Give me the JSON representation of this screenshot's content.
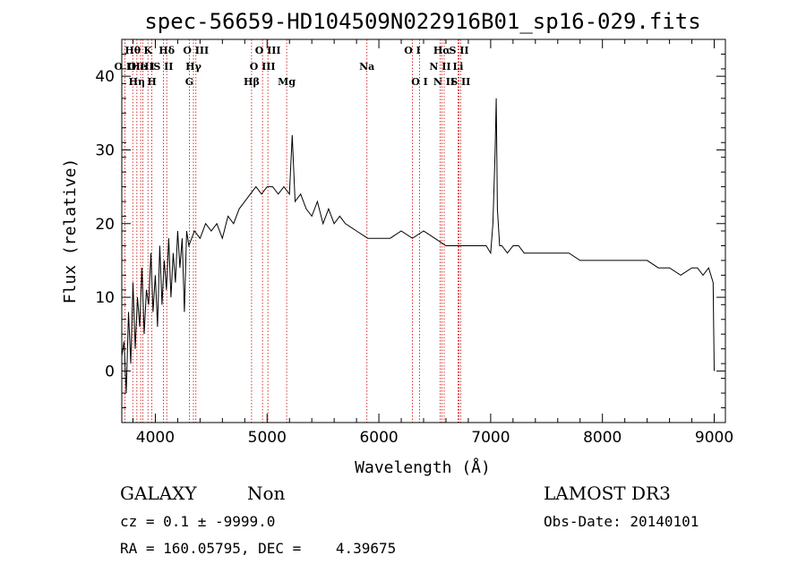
{
  "chart_data": {
    "type": "line",
    "title": "spec-56659-HD104509N022916B01_sp16-029.fits",
    "xlabel": "Wavelength (Å)",
    "ylabel": "Flux (relative)",
    "xlim": [
      3700,
      9100
    ],
    "ylim": [
      -7,
      45
    ],
    "x_ticks": [
      4000,
      5000,
      6000,
      7000,
      8000,
      9000
    ],
    "y_ticks": [
      0,
      10,
      20,
      30,
      40
    ],
    "x_tick_labels": [
      "4000",
      "5000",
      "6000",
      "7000",
      "8000",
      "9000"
    ],
    "y_tick_labels": [
      "0",
      "10",
      "20",
      "30",
      "40"
    ],
    "series": [
      {
        "name": "spectrum",
        "color": "#000000",
        "x": [
          3700,
          3720,
          3740,
          3760,
          3780,
          3800,
          3820,
          3840,
          3860,
          3880,
          3900,
          3920,
          3940,
          3960,
          3980,
          4000,
          4020,
          4040,
          4060,
          4080,
          4100,
          4120,
          4140,
          4160,
          4180,
          4200,
          4220,
          4240,
          4260,
          4280,
          4300,
          4350,
          4400,
          4450,
          4500,
          4550,
          4600,
          4650,
          4700,
          4750,
          4800,
          4850,
          4900,
          4950,
          5000,
          5050,
          5100,
          5150,
          5200,
          5225,
          5250,
          5300,
          5350,
          5400,
          5450,
          5500,
          5550,
          5600,
          5650,
          5700,
          5800,
          5900,
          6000,
          6100,
          6200,
          6300,
          6400,
          6500,
          6600,
          6700,
          6800,
          6900,
          6960,
          7000,
          7020,
          7040,
          7050,
          7060,
          7080,
          7100,
          7150,
          7200,
          7250,
          7300,
          7400,
          7500,
          7600,
          7700,
          7800,
          7900,
          8000,
          8100,
          8200,
          8300,
          8400,
          8500,
          8600,
          8700,
          8800,
          8850,
          8900,
          8950,
          8990,
          9000
        ],
        "y": [
          2,
          4,
          -3,
          8,
          1,
          12,
          3,
          10,
          6,
          14,
          5,
          11,
          9,
          16,
          8,
          13,
          6,
          17,
          9,
          15,
          11,
          18,
          10,
          16,
          12,
          19,
          14,
          18,
          8,
          19,
          17,
          19,
          18,
          20,
          19,
          20,
          18,
          21,
          20,
          22,
          23,
          24,
          25,
          24,
          25,
          25,
          24,
          25,
          24,
          32,
          23,
          24,
          22,
          21,
          23,
          20,
          22,
          20,
          21,
          20,
          19,
          18,
          18,
          18,
          19,
          18,
          19,
          18,
          17,
          17,
          17,
          17,
          17,
          16,
          20,
          30,
          37,
          22,
          17,
          17,
          16,
          17,
          17,
          16,
          16,
          16,
          16,
          16,
          15,
          15,
          15,
          15,
          15,
          15,
          15,
          14,
          14,
          13,
          14,
          14,
          13,
          14,
          12,
          0
        ]
      }
    ],
    "spectral_lines": [
      {
        "label": "O II",
        "x": 3727,
        "row": 2
      },
      {
        "label": "Hθ",
        "x": 3798,
        "row": 1
      },
      {
        "label": "O III",
        "x": 3869,
        "row": 2
      },
      {
        "label": "Hη",
        "x": 3835,
        "row": 3
      },
      {
        "label": "He I",
        "x": 3889,
        "row": 2
      },
      {
        "label": "K",
        "x": 3934,
        "row": 1
      },
      {
        "label": "H",
        "x": 3969,
        "row": 3
      },
      {
        "label": "Hδ",
        "x": 4102,
        "row": 1
      },
      {
        "label": "S II",
        "x": 4072,
        "row": 2
      },
      {
        "label": "O III",
        "x": 4363,
        "row": 1
      },
      {
        "label": "Hγ",
        "x": 4341,
        "row": 2
      },
      {
        "label": "G",
        "x": 4305,
        "row": 3
      },
      {
        "label": "O III",
        "x": 5007,
        "row": 1
      },
      {
        "label": "O III",
        "x": 4959,
        "row": 2
      },
      {
        "label": "Hβ",
        "x": 4861,
        "row": 3
      },
      {
        "label": "Mg",
        "x": 5175,
        "row": 3
      },
      {
        "label": "Na",
        "x": 5893,
        "row": 2
      },
      {
        "label": "O I",
        "x": 6300,
        "row": 1
      },
      {
        "label": "O I",
        "x": 6364,
        "row": 3
      },
      {
        "label": "Hα",
        "x": 6563,
        "row": 1
      },
      {
        "label": "N II",
        "x": 6548,
        "row": 2
      },
      {
        "label": "N II",
        "x": 6584,
        "row": 3
      },
      {
        "label": "S II",
        "x": 6717,
        "row": 1
      },
      {
        "label": "Li",
        "x": 6708,
        "row": 2
      },
      {
        "label": "S II",
        "x": 6731,
        "row": 3
      }
    ]
  },
  "info": {
    "class_label": "GALAXY",
    "subclass_label": "Non",
    "survey": "LAMOST DR3",
    "cz": "cz = 0.1 ± -9999.0",
    "obs_date": "Obs-Date: 20140101",
    "coords": "RA = 160.05795, DEC =    4.39675"
  },
  "colors": {
    "line_marker": "#cc0000",
    "spectrum": "#000000",
    "axes": "#000000"
  }
}
